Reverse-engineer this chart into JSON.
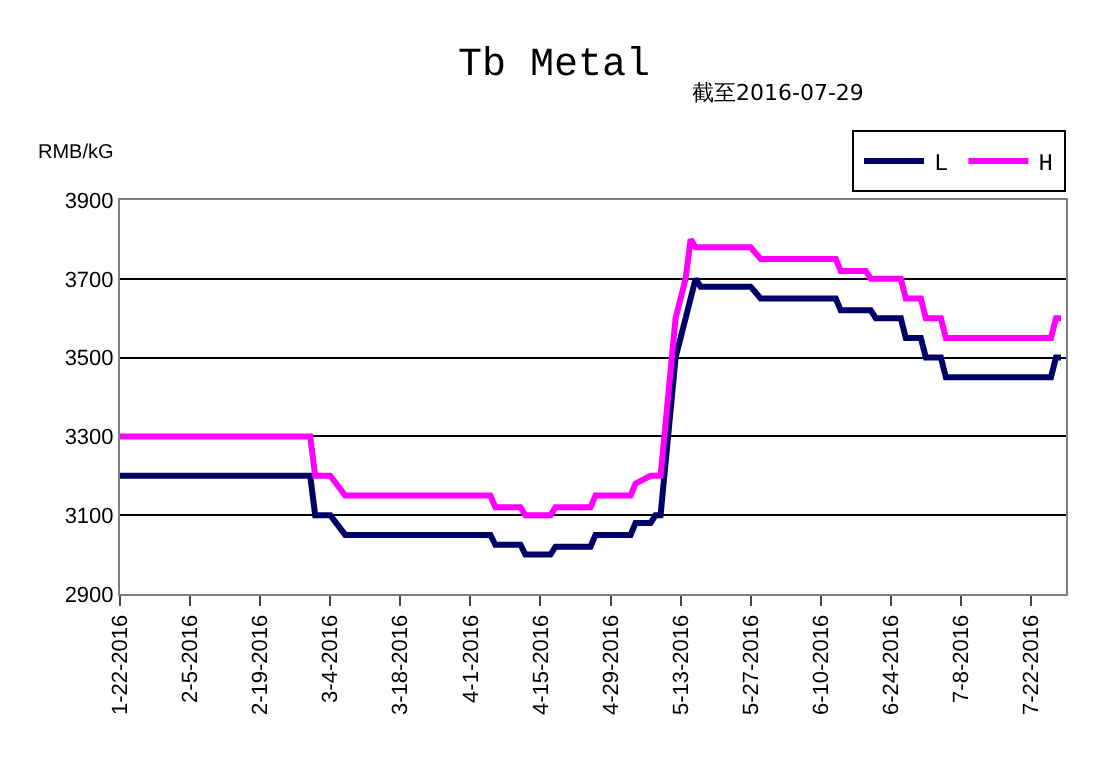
{
  "chart_data": {
    "type": "line",
    "title": "Tb Metal",
    "subtitle": "截至2016-07-29",
    "ylabel": "RMB/kG",
    "series": [
      {
        "name": "L",
        "color": "#000066",
        "x": [
          "2016-01-22",
          "2016-02-29",
          "2016-03-01",
          "2016-03-04",
          "2016-03-07",
          "2016-04-05",
          "2016-04-06",
          "2016-04-11",
          "2016-04-12",
          "2016-04-17",
          "2016-04-18",
          "2016-04-25",
          "2016-04-26",
          "2016-05-03",
          "2016-05-04",
          "2016-05-07",
          "2016-05-08",
          "2016-05-09",
          "2016-05-12",
          "2016-05-14",
          "2016-05-16",
          "2016-05-17",
          "2016-05-27",
          "2016-05-29",
          "2016-06-13",
          "2016-06-14",
          "2016-06-20",
          "2016-06-21",
          "2016-06-26",
          "2016-06-27",
          "2016-06-30",
          "2016-07-01",
          "2016-07-04",
          "2016-07-05",
          "2016-07-26",
          "2016-07-27",
          "2016-07-28"
        ],
        "values": [
          3200,
          3200,
          3100,
          3100,
          3050,
          3050,
          3025,
          3025,
          3000,
          3000,
          3020,
          3020,
          3050,
          3050,
          3080,
          3080,
          3100,
          3100,
          3500,
          3600,
          3700,
          3680,
          3680,
          3650,
          3650,
          3620,
          3620,
          3600,
          3600,
          3550,
          3550,
          3500,
          3500,
          3450,
          3450,
          3500,
          3500
        ]
      },
      {
        "name": "H",
        "color": "#ff00ff",
        "x": [
          "2016-01-22",
          "2016-02-29",
          "2016-03-01",
          "2016-03-04",
          "2016-03-07",
          "2016-04-05",
          "2016-04-06",
          "2016-04-11",
          "2016-04-12",
          "2016-04-17",
          "2016-04-18",
          "2016-04-25",
          "2016-04-26",
          "2016-05-03",
          "2016-05-04",
          "2016-05-07",
          "2016-05-09",
          "2016-05-12",
          "2016-05-14",
          "2016-05-15",
          "2016-05-16",
          "2016-05-27",
          "2016-05-29",
          "2016-06-13",
          "2016-06-14",
          "2016-06-19",
          "2016-06-20",
          "2016-06-26",
          "2016-06-27",
          "2016-06-30",
          "2016-07-01",
          "2016-07-04",
          "2016-07-05",
          "2016-07-26",
          "2016-07-27",
          "2016-07-28"
        ],
        "values": [
          3300,
          3300,
          3200,
          3200,
          3150,
          3150,
          3120,
          3120,
          3100,
          3100,
          3120,
          3120,
          3150,
          3150,
          3180,
          3200,
          3200,
          3600,
          3700,
          3800,
          3780,
          3780,
          3750,
          3750,
          3720,
          3720,
          3700,
          3700,
          3650,
          3650,
          3600,
          3600,
          3550,
          3550,
          3600,
          3600
        ]
      }
    ],
    "xlim": [
      "2016-01-22",
      "2016-07-29"
    ],
    "xticks": [
      {
        "value": "2016-01-22",
        "label": "1-22-2016"
      },
      {
        "value": "2016-02-05",
        "label": "2-5-2016"
      },
      {
        "value": "2016-02-19",
        "label": "2-19-2016"
      },
      {
        "value": "2016-03-04",
        "label": "3-4-2016"
      },
      {
        "value": "2016-03-18",
        "label": "3-18-2016"
      },
      {
        "value": "2016-04-01",
        "label": "4-1-2016"
      },
      {
        "value": "2016-04-15",
        "label": "4-15-2016"
      },
      {
        "value": "2016-04-29",
        "label": "4-29-2016"
      },
      {
        "value": "2016-05-13",
        "label": "5-13-2016"
      },
      {
        "value": "2016-05-27",
        "label": "5-27-2016"
      },
      {
        "value": "2016-06-10",
        "label": "6-10-2016"
      },
      {
        "value": "2016-06-24",
        "label": "6-24-2016"
      },
      {
        "value": "2016-07-08",
        "label": "7-8-2016"
      },
      {
        "value": "2016-07-22",
        "label": "7-22-2016"
      }
    ],
    "ylim": [
      2900,
      3900
    ],
    "yticks": [
      2900,
      3100,
      3300,
      3500,
      3700,
      3900
    ],
    "grid": "y",
    "legend": "top right",
    "marker": "none",
    "line_style": "solid"
  }
}
